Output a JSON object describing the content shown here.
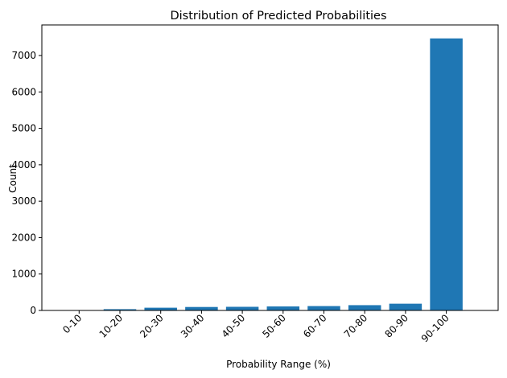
{
  "chart_data": {
    "type": "bar",
    "title": "Distribution of Predicted Probabilities",
    "xlabel": "Probability Range (%)",
    "ylabel": "Count",
    "categories": [
      "0-10",
      "10-20",
      "20-30",
      "30-40",
      "40-50",
      "50-60",
      "60-70",
      "70-80",
      "80-90",
      "90-100"
    ],
    "values": [
      5,
      35,
      75,
      95,
      100,
      110,
      120,
      145,
      185,
      7470
    ],
    "ylim": [
      0,
      7840
    ],
    "yticks": [
      0,
      1000,
      2000,
      3000,
      4000,
      5000,
      6000,
      7000
    ],
    "bar_color": "#1f77b4",
    "grid": false
  }
}
